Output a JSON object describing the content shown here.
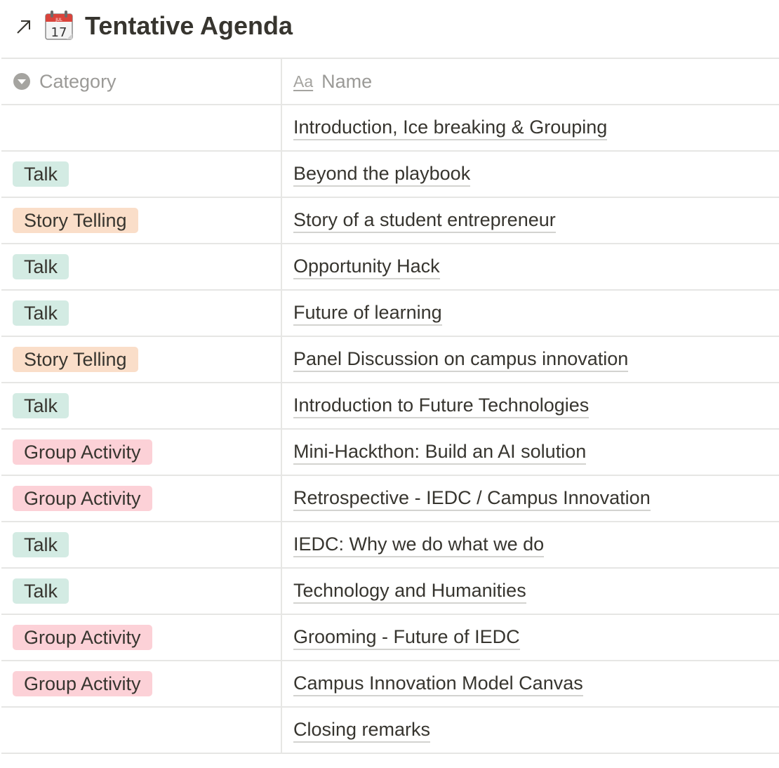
{
  "page": {
    "title": "Tentative Agenda",
    "icon": "calendar-icon",
    "open_icon": "open-arrow-icon",
    "calendar": {
      "month": "JUL",
      "day": "17"
    }
  },
  "table": {
    "columns": [
      {
        "label": "Category",
        "icon": "select-property-icon"
      },
      {
        "label": "Name",
        "icon": "text-property-icon",
        "icon_text": "Aa"
      }
    ],
    "tag_colors": {
      "Talk": "#d3ebe3",
      "Story Telling": "#fadec9",
      "Group Activity": "#fcd1d7"
    },
    "rows": [
      {
        "category": "",
        "name": "Introduction, Ice breaking & Grouping"
      },
      {
        "category": "Talk",
        "name": "Beyond the playbook"
      },
      {
        "category": "Story Telling",
        "name": "Story of a student entrepreneur"
      },
      {
        "category": "Talk",
        "name": "Opportunity Hack"
      },
      {
        "category": "Talk",
        "name": "Future of learning"
      },
      {
        "category": "Story Telling",
        "name": "Panel Discussion on campus innovation"
      },
      {
        "category": "Talk",
        "name": "Introduction to Future Technologies"
      },
      {
        "category": "Group Activity",
        "name": "Mini-Hackthon: Build an AI solution"
      },
      {
        "category": "Group Activity",
        "name": "Retrospective - IEDC / Campus Innovation"
      },
      {
        "category": "Talk",
        "name": "IEDC: Why we do what we do"
      },
      {
        "category": "Talk",
        "name": "Technology and Humanities"
      },
      {
        "category": "Group Activity",
        "name": "Grooming - Future of IEDC"
      },
      {
        "category": "Group Activity",
        "name": "Campus Innovation Model Canvas"
      },
      {
        "category": "",
        "name": "Closing remarks"
      }
    ]
  }
}
